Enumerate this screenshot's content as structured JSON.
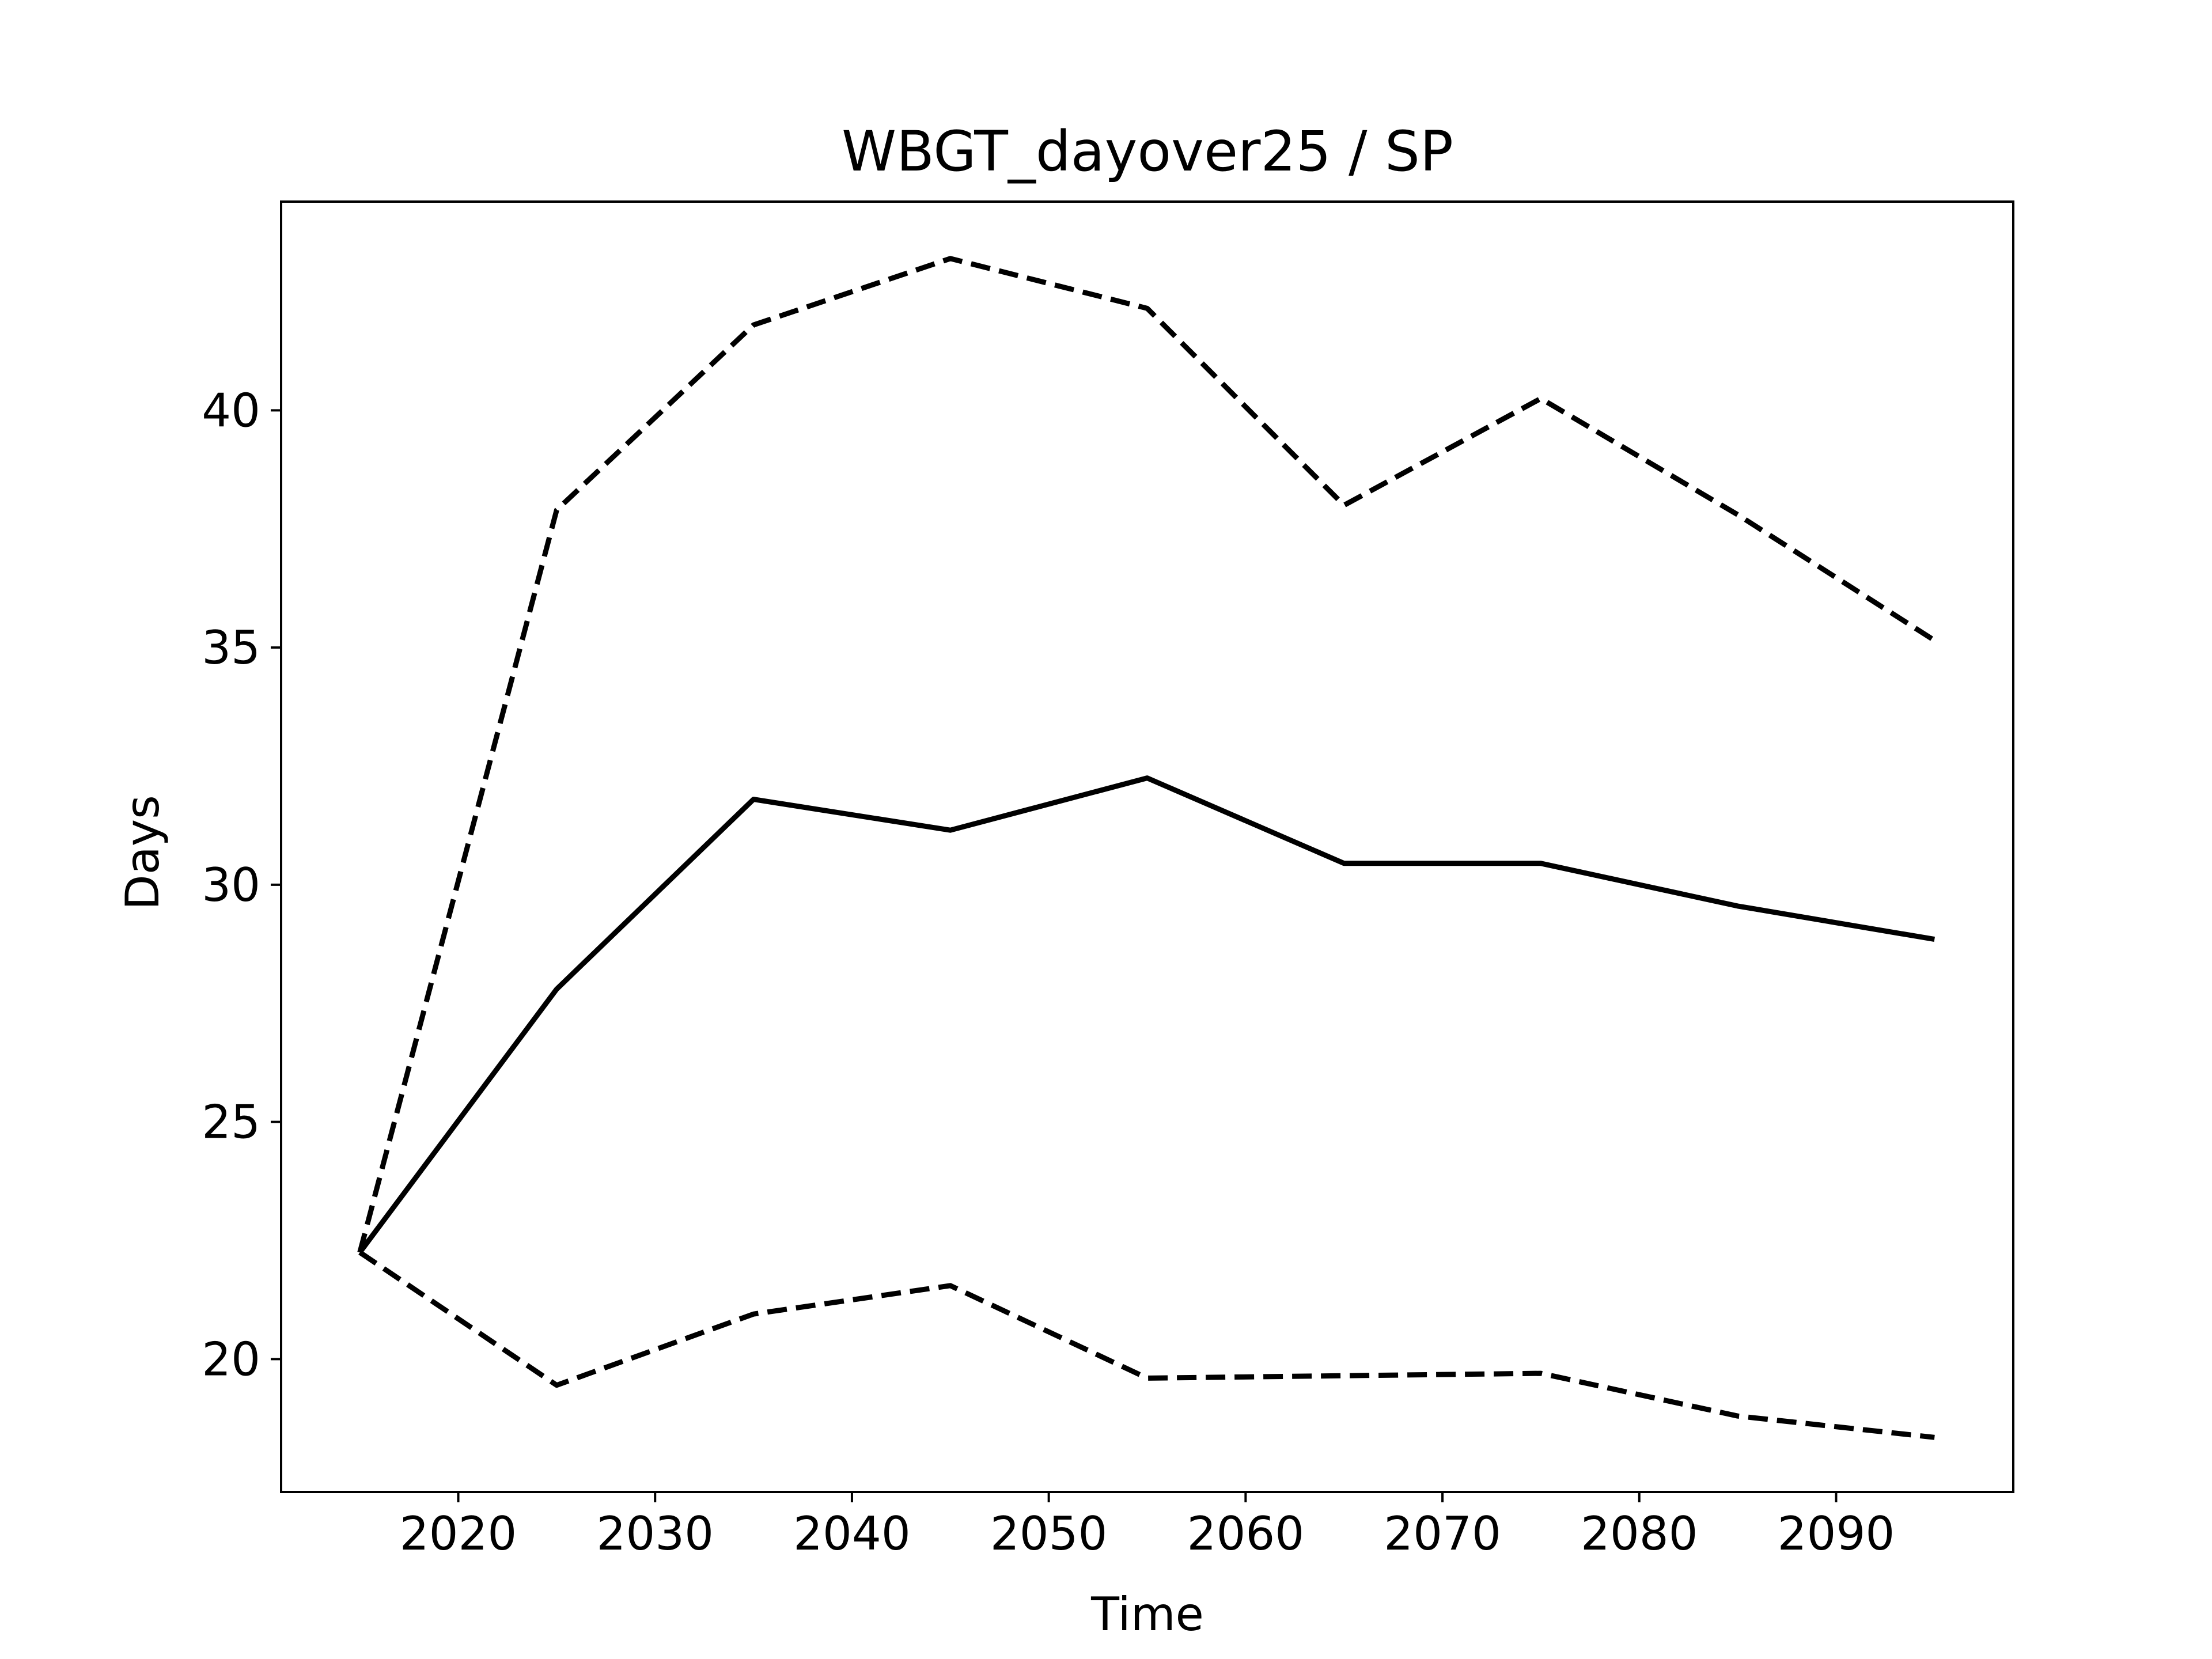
{
  "chart_data": {
    "type": "line",
    "title": "WBGT_dayover25 / SP",
    "xlabel": "Time",
    "ylabel": "Days",
    "xlim": [
      2011,
      2099
    ],
    "ylim": [
      17.2,
      44.4
    ],
    "xticks": [
      2020,
      2030,
      2040,
      2050,
      2060,
      2070,
      2080,
      2090
    ],
    "yticks": [
      20,
      25,
      30,
      35,
      40
    ],
    "grid": false,
    "x": [
      2015,
      2025,
      2035,
      2045,
      2055,
      2065,
      2075,
      2085,
      2095
    ],
    "series": [
      {
        "style": "dashed",
        "color": "#000000",
        "values": [
          22.25,
          37.9,
          41.8,
          43.2,
          42.15,
          38.0,
          40.25,
          37.8,
          35.15
        ]
      },
      {
        "style": "solid",
        "color": "#000000",
        "values": [
          22.25,
          27.8,
          31.8,
          31.15,
          32.25,
          30.45,
          30.45,
          29.55,
          28.85
        ]
      },
      {
        "style": "dashed",
        "color": "#000000",
        "values": [
          22.25,
          19.45,
          20.95,
          21.55,
          19.6,
          19.65,
          19.7,
          18.8,
          18.35
        ]
      }
    ]
  }
}
